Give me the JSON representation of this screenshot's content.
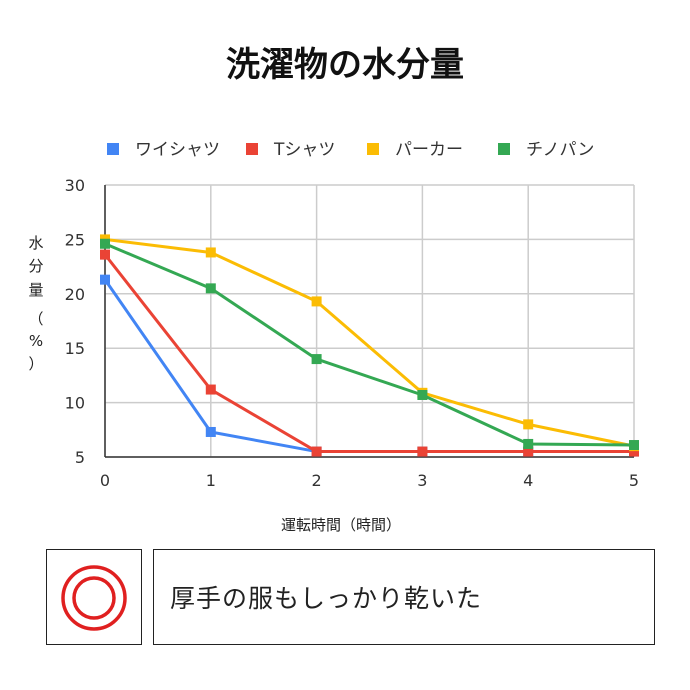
{
  "colors": {
    "shirt": "#4285F4",
    "tshirt": "#EA4335",
    "parka": "#FBBC04",
    "chinos": "#34A853",
    "grid": "#cccccc",
    "axis": "#333333",
    "rating": "#e02020"
  },
  "chart_data": {
    "type": "line",
    "title": "洗濯物の水分量",
    "xlabel": "運転時間（時間）",
    "ylabel": [
      "水",
      "分",
      "量",
      "（",
      "%",
      "）"
    ],
    "x": [
      0,
      1,
      2,
      3,
      4,
      5
    ],
    "xlim": [
      0,
      5
    ],
    "ylim": [
      5,
      30
    ],
    "yticks": [
      5,
      10,
      15,
      20,
      25,
      30
    ],
    "grid": true,
    "legend_position": "top",
    "series": [
      {
        "name": "ワイシャツ",
        "color_key": "shirt",
        "values": [
          21.3,
          7.3,
          5.5,
          5.5,
          5.5,
          5.5
        ]
      },
      {
        "name": "Tシャツ",
        "color_key": "tshirt",
        "values": [
          23.6,
          11.2,
          5.5,
          5.5,
          5.5,
          5.5
        ]
      },
      {
        "name": "パーカー",
        "color_key": "parka",
        "values": [
          25.0,
          23.8,
          19.3,
          10.9,
          8.0,
          6.0
        ]
      },
      {
        "name": "チノパン",
        "color_key": "chinos",
        "values": [
          24.6,
          20.5,
          14.0,
          10.7,
          6.2,
          6.1
        ]
      }
    ]
  },
  "result": {
    "rating_icon": "double-circle-icon",
    "comment": "厚手の服もしっかり乾いた"
  }
}
